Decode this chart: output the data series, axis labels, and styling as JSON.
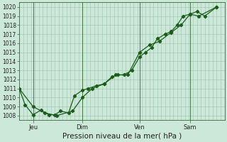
{
  "title": "",
  "xlabel": "Pression niveau de la mer( hPa )",
  "background_color": "#cce8d8",
  "grid_color": "#99c4aa",
  "line_color": "#1a5c1a",
  "ylim": [
    1007.5,
    1020.5
  ],
  "xlim": [
    0,
    1.04
  ],
  "day_labels": [
    "Jeu",
    "Dim",
    "Ven",
    "Sam"
  ],
  "day_positions": [
    0.07,
    0.32,
    0.61,
    0.865
  ],
  "series1_x": [
    0.0,
    0.03,
    0.07,
    0.11,
    0.15,
    0.18,
    0.21,
    0.25,
    0.28,
    0.32,
    0.35,
    0.39,
    0.43,
    0.47,
    0.5,
    0.53,
    0.57,
    0.61,
    0.64,
    0.67,
    0.7,
    0.74,
    0.77,
    0.8,
    0.83,
    0.865,
    0.9,
    0.94,
    1.0
  ],
  "series1_y": [
    1011.0,
    1009.2,
    1008.1,
    1008.6,
    1008.1,
    1008.1,
    1008.5,
    1008.3,
    1010.2,
    1010.8,
    1011.0,
    1011.3,
    1011.5,
    1012.3,
    1012.5,
    1012.5,
    1013.0,
    1014.5,
    1015.0,
    1015.5,
    1016.5,
    1017.0,
    1017.3,
    1018.0,
    1019.0,
    1019.2,
    1019.5,
    1019.0,
    1020.0
  ],
  "series2_x": [
    0.0,
    0.07,
    0.13,
    0.19,
    0.27,
    0.32,
    0.37,
    0.43,
    0.49,
    0.55,
    0.61,
    0.66,
    0.71,
    0.77,
    0.82,
    0.865,
    0.91,
    1.0
  ],
  "series2_y": [
    1011.0,
    1009.0,
    1008.3,
    1008.0,
    1008.5,
    1010.0,
    1011.0,
    1011.5,
    1012.5,
    1012.5,
    1015.0,
    1015.8,
    1016.2,
    1017.2,
    1018.0,
    1019.2,
    1019.0,
    1020.0
  ],
  "yticks": [
    1008,
    1009,
    1010,
    1011,
    1012,
    1013,
    1014,
    1015,
    1016,
    1017,
    1018,
    1019,
    1020
  ],
  "tick_fontsize": 5.5,
  "xlabel_fontsize": 7.5
}
